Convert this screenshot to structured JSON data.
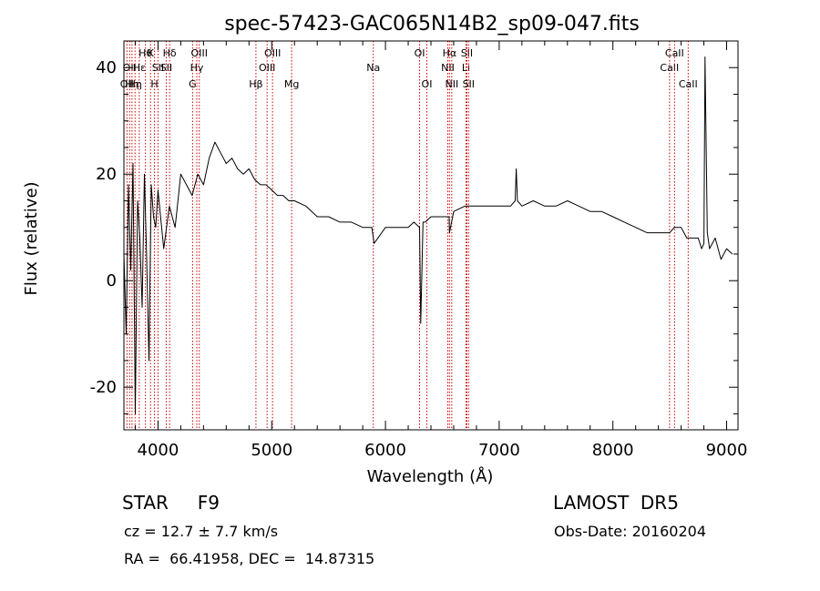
{
  "chart_data": {
    "type": "line",
    "title": "spec-57423-GAC065N14B2_sp09-047.fits",
    "xlabel": "Wavelength (Å)",
    "ylabel": "Flux (relative)",
    "xlim": [
      3700,
      9100
    ],
    "ylim": [
      -28,
      45
    ],
    "xticks": [
      4000,
      5000,
      6000,
      7000,
      8000,
      9000
    ],
    "yticks": [
      -20,
      0,
      20,
      40
    ],
    "grid": false,
    "series": [
      {
        "name": "",
        "color": "#000000",
        "x": [
          3700,
          3720,
          3740,
          3760,
          3780,
          3800,
          3820,
          3840,
          3860,
          3880,
          3900,
          3920,
          3940,
          3960,
          3980,
          4000,
          4050,
          4100,
          4150,
          4200,
          4250,
          4300,
          4350,
          4400,
          4450,
          4500,
          4550,
          4600,
          4650,
          4700,
          4750,
          4800,
          4850,
          4900,
          4950,
          5000,
          5050,
          5100,
          5150,
          5200,
          5300,
          5400,
          5500,
          5600,
          5700,
          5800,
          5880,
          5900,
          6000,
          6100,
          6200,
          6250,
          6300,
          6310,
          6330,
          6350,
          6400,
          6500,
          6560,
          6563,
          6600,
          6700,
          6800,
          6900,
          7000,
          7100,
          7140,
          7150,
          7160,
          7200,
          7300,
          7400,
          7500,
          7600,
          7700,
          7800,
          7900,
          8000,
          8100,
          8200,
          8300,
          8400,
          8500,
          8540,
          8600,
          8650,
          8700,
          8750,
          8780,
          8800,
          8810,
          8830,
          8850,
          8900,
          8950,
          9000,
          9050
        ],
        "y": [
          5,
          -10,
          18,
          2,
          22,
          -25,
          15,
          8,
          -5,
          20,
          4,
          -15,
          18,
          12,
          10,
          17,
          6,
          14,
          10,
          20,
          18,
          16,
          20,
          18,
          23,
          26,
          24,
          22,
          23,
          21,
          20,
          21,
          19,
          18,
          18,
          17,
          16,
          16,
          15,
          15,
          14,
          12,
          12,
          11,
          11,
          10,
          10,
          7,
          10,
          10,
          10,
          11,
          10,
          -8,
          11,
          11,
          12,
          12,
          12,
          9,
          13,
          14,
          14,
          14,
          14,
          14,
          15,
          21,
          15,
          14,
          15,
          14,
          14,
          15,
          14,
          13,
          13,
          12,
          11,
          10,
          9,
          9,
          9,
          10,
          10,
          8,
          8,
          8,
          6,
          7,
          42,
          9,
          6,
          8,
          4,
          6,
          5
        ]
      }
    ],
    "lines": [
      {
        "wl": 3727,
        "label": "OII",
        "row": 3
      },
      {
        "wl": 3750,
        "label": "OII",
        "row": 2
      },
      {
        "wl": 3771,
        "label": "Hη",
        "row": 3
      },
      {
        "wl": 3798,
        "label": "Hη",
        "row": 3
      },
      {
        "wl": 3835,
        "label": "Hε",
        "row": 2
      },
      {
        "wl": 3889,
        "label": "Hθ",
        "row": 1
      },
      {
        "wl": 3934,
        "label": "K",
        "row": 1
      },
      {
        "wl": 3969,
        "label": "H",
        "row": 3
      },
      {
        "wl": 4000,
        "label": "SII",
        "row": 2
      },
      {
        "wl": 4072,
        "label": "SII",
        "row": 2
      },
      {
        "wl": 4102,
        "label": "Hδ",
        "row": 1
      },
      {
        "wl": 4304,
        "label": "G",
        "row": 3
      },
      {
        "wl": 4341,
        "label": "Hγ",
        "row": 2
      },
      {
        "wl": 4363,
        "label": "OIII",
        "row": 1
      },
      {
        "wl": 4861,
        "label": "Hβ",
        "row": 3
      },
      {
        "wl": 4959,
        "label": "OIII",
        "row": 2
      },
      {
        "wl": 5007,
        "label": "OIII",
        "row": 1
      },
      {
        "wl": 5175,
        "label": "Mg",
        "row": 3
      },
      {
        "wl": 5893,
        "label": "Na",
        "row": 2
      },
      {
        "wl": 6300,
        "label": "OI",
        "row": 1
      },
      {
        "wl": 6364,
        "label": "OI",
        "row": 3
      },
      {
        "wl": 6548,
        "label": "NII",
        "row": 2
      },
      {
        "wl": 6563,
        "label": "Hα",
        "row": 1
      },
      {
        "wl": 6583,
        "label": "NII",
        "row": 3
      },
      {
        "wl": 6708,
        "label": "Li",
        "row": 2
      },
      {
        "wl": 6716,
        "label": "SII",
        "row": 1
      },
      {
        "wl": 6731,
        "label": "SII",
        "row": 3
      },
      {
        "wl": 8498,
        "label": "CaII",
        "row": 2
      },
      {
        "wl": 8542,
        "label": "CaII",
        "row": 1
      },
      {
        "wl": 8662,
        "label": "CaII",
        "row": 3
      }
    ]
  },
  "info": {
    "classification": "STAR     F9",
    "survey": "LAMOST  DR5",
    "cz": "cz = 12.7 ± 7.7 km/s",
    "obs_date": "Obs-Date: 20160204",
    "radec": "RA =  66.41958, DEC =  14.87315"
  }
}
